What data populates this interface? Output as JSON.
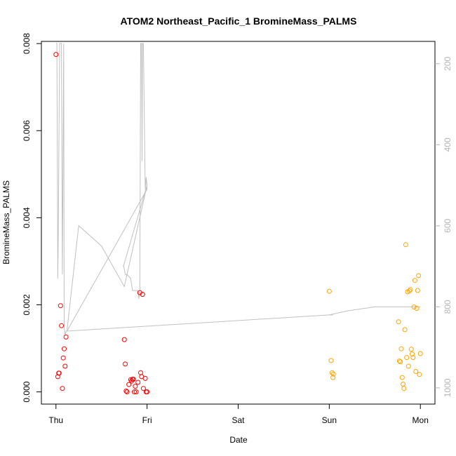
{
  "chart_data": {
    "type": "scatter",
    "title": "ATOM2 Northeast_Pacific_1 BromineMass_PALMS",
    "xlabel": "Date",
    "ylabel": "BromineMass_PALMS",
    "x_tick_labels": [
      "Thu",
      "Fri",
      "Sat",
      "Sun",
      "Mon"
    ],
    "x_tick_values": [
      0,
      1,
      2,
      3,
      4
    ],
    "xlim": [
      -0.16,
      4.16
    ],
    "ylim": [
      -0.00028,
      0.00805
    ],
    "y_ticks": [
      0.0,
      0.002,
      0.004,
      0.006,
      0.008
    ],
    "y_tick_labels": [
      "0.000",
      "0.002",
      "0.004",
      "0.006",
      "0.008"
    ],
    "y2_ticks": [
      200,
      400,
      600,
      800,
      1000
    ],
    "y2_tick_labels": [
      "200",
      "400",
      "600",
      "800",
      "1000"
    ],
    "y2lim": [
      1040,
      145
    ],
    "y2_reversed": true,
    "grid": false,
    "colors": {
      "series_1": "#ff0000",
      "series_2": "#ffa500",
      "altitude_line": "#c0c0c0",
      "axis": "#000000",
      "right_axis": "#b4b4b4"
    },
    "series": [
      {
        "color": "#ff0000",
        "x": [
          0.0,
          0.02,
          0.03,
          0.035,
          0.05,
          0.06,
          0.07,
          0.08,
          0.09,
          0.1,
          0.11,
          0.75,
          0.76,
          0.77,
          0.78,
          0.8,
          0.82,
          0.83,
          0.84,
          0.85,
          0.86,
          0.87,
          0.88,
          0.9,
          0.92,
          0.93,
          0.94,
          0.95,
          0.96,
          0.98,
          0.99,
          1.0
        ],
        "y": [
          0.00775,
          0.00035,
          0.00043,
          0.00043,
          0.00198,
          0.00152,
          8e-05,
          0.00078,
          0.00099,
          0.00059,
          0.00126,
          0.0012,
          0.00064,
          2e-05,
          0.0,
          0.00017,
          0.00028,
          0.00025,
          0.00029,
          0.00029,
          0.0,
          0.00013,
          0.0,
          0.00022,
          0.00228,
          0.00044,
          0.00035,
          0.00224,
          8e-05,
          0.00031,
          0.0,
          0.0
        ]
      },
      {
        "color": "#ffa500",
        "x": [
          3.0,
          3.02,
          3.03,
          3.04,
          3.045,
          3.76,
          3.77,
          3.78,
          3.79,
          3.8,
          3.81,
          3.82,
          3.83,
          3.84,
          3.85,
          3.86,
          3.87,
          3.88,
          3.89,
          3.9,
          3.91,
          3.92,
          3.93,
          3.94,
          3.95,
          3.96,
          3.97,
          3.98,
          3.99,
          4.0
        ],
        "y": [
          0.00231,
          0.00072,
          0.00044,
          0.00033,
          0.00041,
          0.00161,
          0.00071,
          0.00069,
          0.00099,
          0.00033,
          0.00018,
          8e-05,
          0.00143,
          0.00338,
          0.00079,
          0.0023,
          0.00059,
          0.00232,
          0.00235,
          0.00098,
          0.00087,
          0.00079,
          0.00195,
          0.00256,
          0.00047,
          0.00192,
          0.00233,
          0.00267,
          0.0004,
          0.00088
        ]
      }
    ],
    "altitude_line": {
      "axis": "right",
      "color": "#c0c0c0",
      "x": [
        0.0,
        0.01,
        0.02,
        0.025,
        0.04,
        0.06,
        0.07,
        0.085,
        0.09,
        0.1,
        0.11,
        0.12,
        0.25,
        0.5,
        0.75,
        0.98,
        1.0,
        0.99,
        1.0,
        0.74,
        0.745,
        0.76,
        0.78,
        0.82,
        0.84,
        0.86,
        0.88,
        0.9,
        0.91,
        0.92,
        0.93,
        0.94,
        0.945,
        0.95,
        0.96,
        0.98,
        0.99,
        1.0,
        0.12,
        3.0,
        3.02,
        3.03,
        3.04,
        3.0,
        3.2,
        3.5,
        3.76,
        3.77,
        3.79,
        3.8,
        3.81,
        3.82,
        3.83,
        3.84,
        3.85,
        3.86,
        3.87,
        3.88,
        3.89,
        3.9,
        3.91,
        3.92,
        3.93,
        3.95,
        3.96,
        3.98,
        4.0
      ],
      "y": [
        150,
        150,
        730,
        640,
        150,
        150,
        720,
        150,
        850,
        870,
        860,
        860,
        600,
        650,
        750,
        520,
        500,
        480,
        500,
        700,
        700,
        720,
        720,
        730,
        760,
        760,
        760,
        760,
        780,
        760,
        150,
        150,
        440,
        150,
        150,
        510,
        480,
        510,
        860,
        820,
        820,
        820,
        820,
        820,
        810,
        800,
        800,
        800,
        800,
        800,
        800,
        800,
        800,
        800,
        800,
        800,
        800,
        800,
        800,
        800,
        800,
        800,
        800,
        800,
        800,
        800,
        800
      ]
    }
  }
}
